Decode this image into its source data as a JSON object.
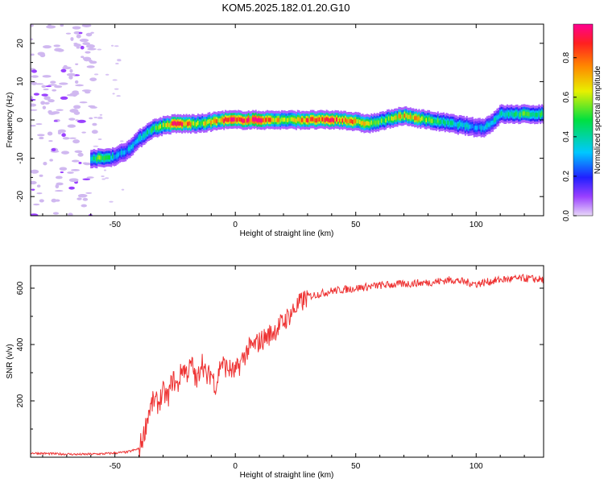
{
  "title": "KOM5.2025.182.01.20.G10",
  "chart_data": [
    {
      "type": "heatmap",
      "xlabel": "Height of straight line (km)",
      "ylabel": "Frequency (Hz)",
      "xlim": [
        -85,
        128
      ],
      "ylim": [
        -25,
        25
      ],
      "xticks": [
        -50,
        0,
        50,
        100
      ],
      "yticks": [
        -20,
        -10,
        0,
        10,
        20
      ],
      "colorbar": {
        "label": "Normalized spectral amplitude",
        "range": [
          0,
          0.97
        ],
        "ticks": [
          0.0,
          0.2,
          0.4,
          0.6,
          0.8
        ]
      },
      "ridge_x": [
        -60,
        -55,
        -50,
        -45,
        -40,
        -35,
        -30,
        -25,
        -20,
        -15,
        -10,
        -5,
        0,
        5,
        10,
        15,
        20,
        25,
        30,
        35,
        40,
        45,
        50,
        55,
        60,
        65,
        70,
        75,
        80,
        85,
        90,
        95,
        100,
        103,
        106,
        110,
        115,
        120,
        125,
        128
      ],
      "ridge_freq": [
        -10,
        -10,
        -9.5,
        -8,
        -5,
        -2.5,
        -1.5,
        -1,
        -1,
        -1,
        -0.5,
        0,
        0,
        0,
        0,
        0,
        0,
        0,
        0,
        0,
        0,
        0,
        -0.5,
        -1,
        -0.5,
        0.5,
        1,
        0.5,
        0,
        -0.5,
        -1,
        -1.5,
        -2,
        -2,
        -1,
        1.5,
        1.5,
        1.5,
        1.5,
        1.5
      ],
      "ridge_amplitude": [
        0.45,
        0.55,
        0.35,
        0.3,
        0.35,
        0.45,
        0.6,
        0.9,
        0.8,
        0.6,
        0.7,
        0.8,
        0.95,
        0.95,
        0.9,
        0.75,
        0.65,
        0.7,
        0.8,
        0.85,
        0.85,
        0.8,
        0.75,
        0.6,
        0.5,
        0.65,
        0.7,
        0.7,
        0.6,
        0.45,
        0.4,
        0.35,
        0.3,
        0.35,
        0.4,
        0.4,
        0.45,
        0.5,
        0.45,
        0.45
      ]
    },
    {
      "type": "line",
      "xlabel": "Height of straight line (km)",
      "ylabel": "SNR (v/v)",
      "xlim": [
        -85,
        128
      ],
      "ylim": [
        0,
        680
      ],
      "xticks": [
        -50,
        0,
        50,
        100
      ],
      "yticks": [
        200,
        400,
        600
      ],
      "color": "#ee3333",
      "series": [
        {
          "x": [
            -85,
            -75,
            -65,
            -55,
            -45,
            -40,
            -38,
            -36,
            -34,
            -32,
            -30,
            -28,
            -26,
            -24,
            -22,
            -20,
            -18,
            -16,
            -14,
            -12,
            -10,
            -8,
            -6,
            -4,
            -2,
            0,
            5,
            10,
            15,
            20,
            25,
            30,
            35,
            40,
            50,
            60,
            70,
            80,
            90,
            100,
            110,
            120,
            128
          ],
          "y": [
            15,
            12,
            10,
            12,
            18,
            30,
            80,
            160,
            200,
            190,
            230,
            210,
            280,
            250,
            320,
            300,
            330,
            260,
            350,
            280,
            300,
            250,
            340,
            320,
            310,
            300,
            380,
            410,
            440,
            480,
            530,
            570,
            580,
            590,
            600,
            610,
            615,
            620,
            630,
            615,
            630,
            635,
            630
          ]
        }
      ]
    }
  ]
}
